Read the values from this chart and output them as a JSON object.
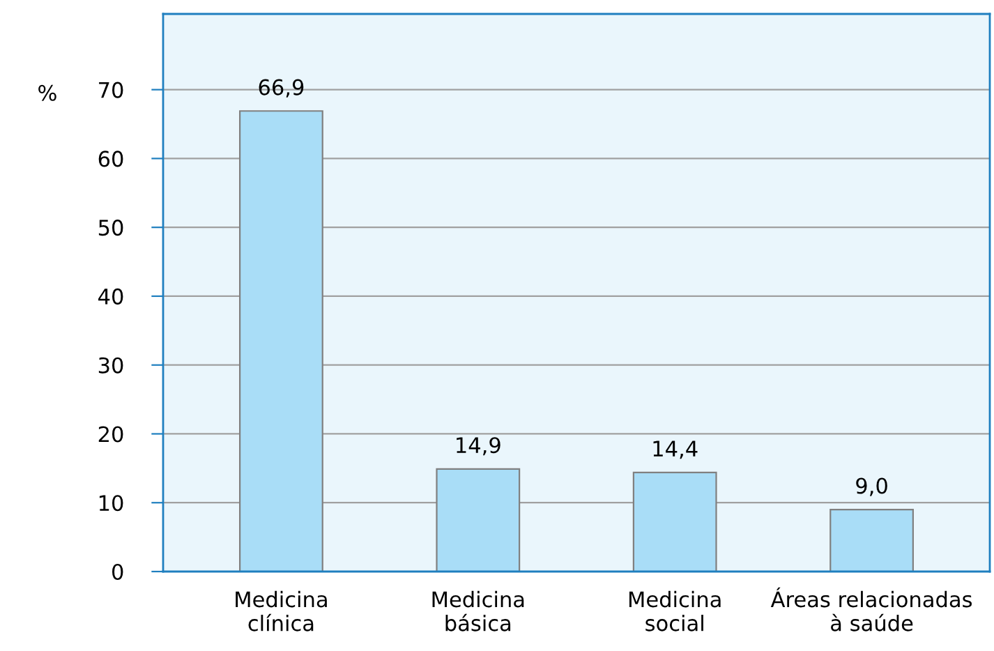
{
  "chart_data": {
    "type": "bar",
    "ylabel": "%",
    "categories": [
      "Medicina\nclínica",
      "Medicina\nbásica",
      "Medicina\nsocial",
      "Áreas relacionadas\nà saúde"
    ],
    "values": [
      66.9,
      14.9,
      14.4,
      9.0
    ],
    "value_labels": [
      "66,9",
      "14,9",
      "14,4",
      "9,0"
    ],
    "color": "#a9ddf7",
    "ylim": [
      0,
      81
    ],
    "yticks": [
      0,
      10,
      20,
      30,
      40,
      50,
      60,
      70
    ],
    "grid": "y",
    "legend": false
  }
}
